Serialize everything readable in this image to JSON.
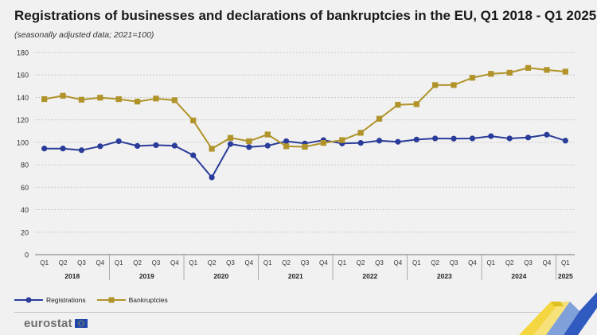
{
  "header": {
    "title": "Registrations of businesses and declarations of bankruptcies in the EU, Q1 2018 - Q1 2025",
    "subtitle": "(seasonally adjusted data; 2021=100)"
  },
  "brand": {
    "name": "eurostat"
  },
  "legend": {
    "position": "bottom-left"
  },
  "chart_data": {
    "type": "line",
    "ylim": [
      0,
      180
    ],
    "yticks": [
      0,
      20,
      40,
      60,
      80,
      100,
      120,
      140,
      160,
      180
    ],
    "grid": true,
    "quarter_labels": [
      "Q1",
      "Q2",
      "Q3",
      "Q4",
      "Q1",
      "Q2",
      "Q3",
      "Q4",
      "Q1",
      "Q2",
      "Q3",
      "Q4",
      "Q1",
      "Q2",
      "Q3",
      "Q4",
      "Q1",
      "Q2",
      "Q3",
      "Q4",
      "Q1",
      "Q2",
      "Q3",
      "Q4",
      "Q1",
      "Q2",
      "Q3",
      "Q4",
      "Q1"
    ],
    "years": [
      {
        "label": "2018",
        "quarters": 4
      },
      {
        "label": "2019",
        "quarters": 4
      },
      {
        "label": "2020",
        "quarters": 4
      },
      {
        "label": "2021",
        "quarters": 4
      },
      {
        "label": "2022",
        "quarters": 4
      },
      {
        "label": "2023",
        "quarters": 4
      },
      {
        "label": "2024",
        "quarters": 4
      },
      {
        "label": "2025",
        "quarters": 1
      }
    ],
    "series": [
      {
        "name": "Registrations",
        "color": "#2a3c99",
        "marker": "circle",
        "values": [
          94.5,
          94.5,
          93,
          96.5,
          101,
          96.8,
          97.5,
          97,
          88.5,
          68.8,
          98.5,
          95.8,
          97,
          101,
          99,
          102,
          99,
          99.5,
          101.5,
          100.5,
          102.5,
          103.5,
          103.3,
          103.5,
          105.5,
          103.5,
          104.3,
          106.8,
          101.5
        ]
      },
      {
        "name": "Bankruptcies",
        "color": "#b09329",
        "marker": "square",
        "values": [
          138.5,
          141.5,
          138,
          139.8,
          138.5,
          136.3,
          139,
          137.5,
          119.5,
          94.3,
          104,
          101,
          107,
          96.5,
          96,
          99.5,
          102,
          108.5,
          121,
          133.5,
          134,
          151,
          151,
          157.5,
          161,
          162,
          166.3,
          164.5,
          163
        ]
      }
    ]
  }
}
